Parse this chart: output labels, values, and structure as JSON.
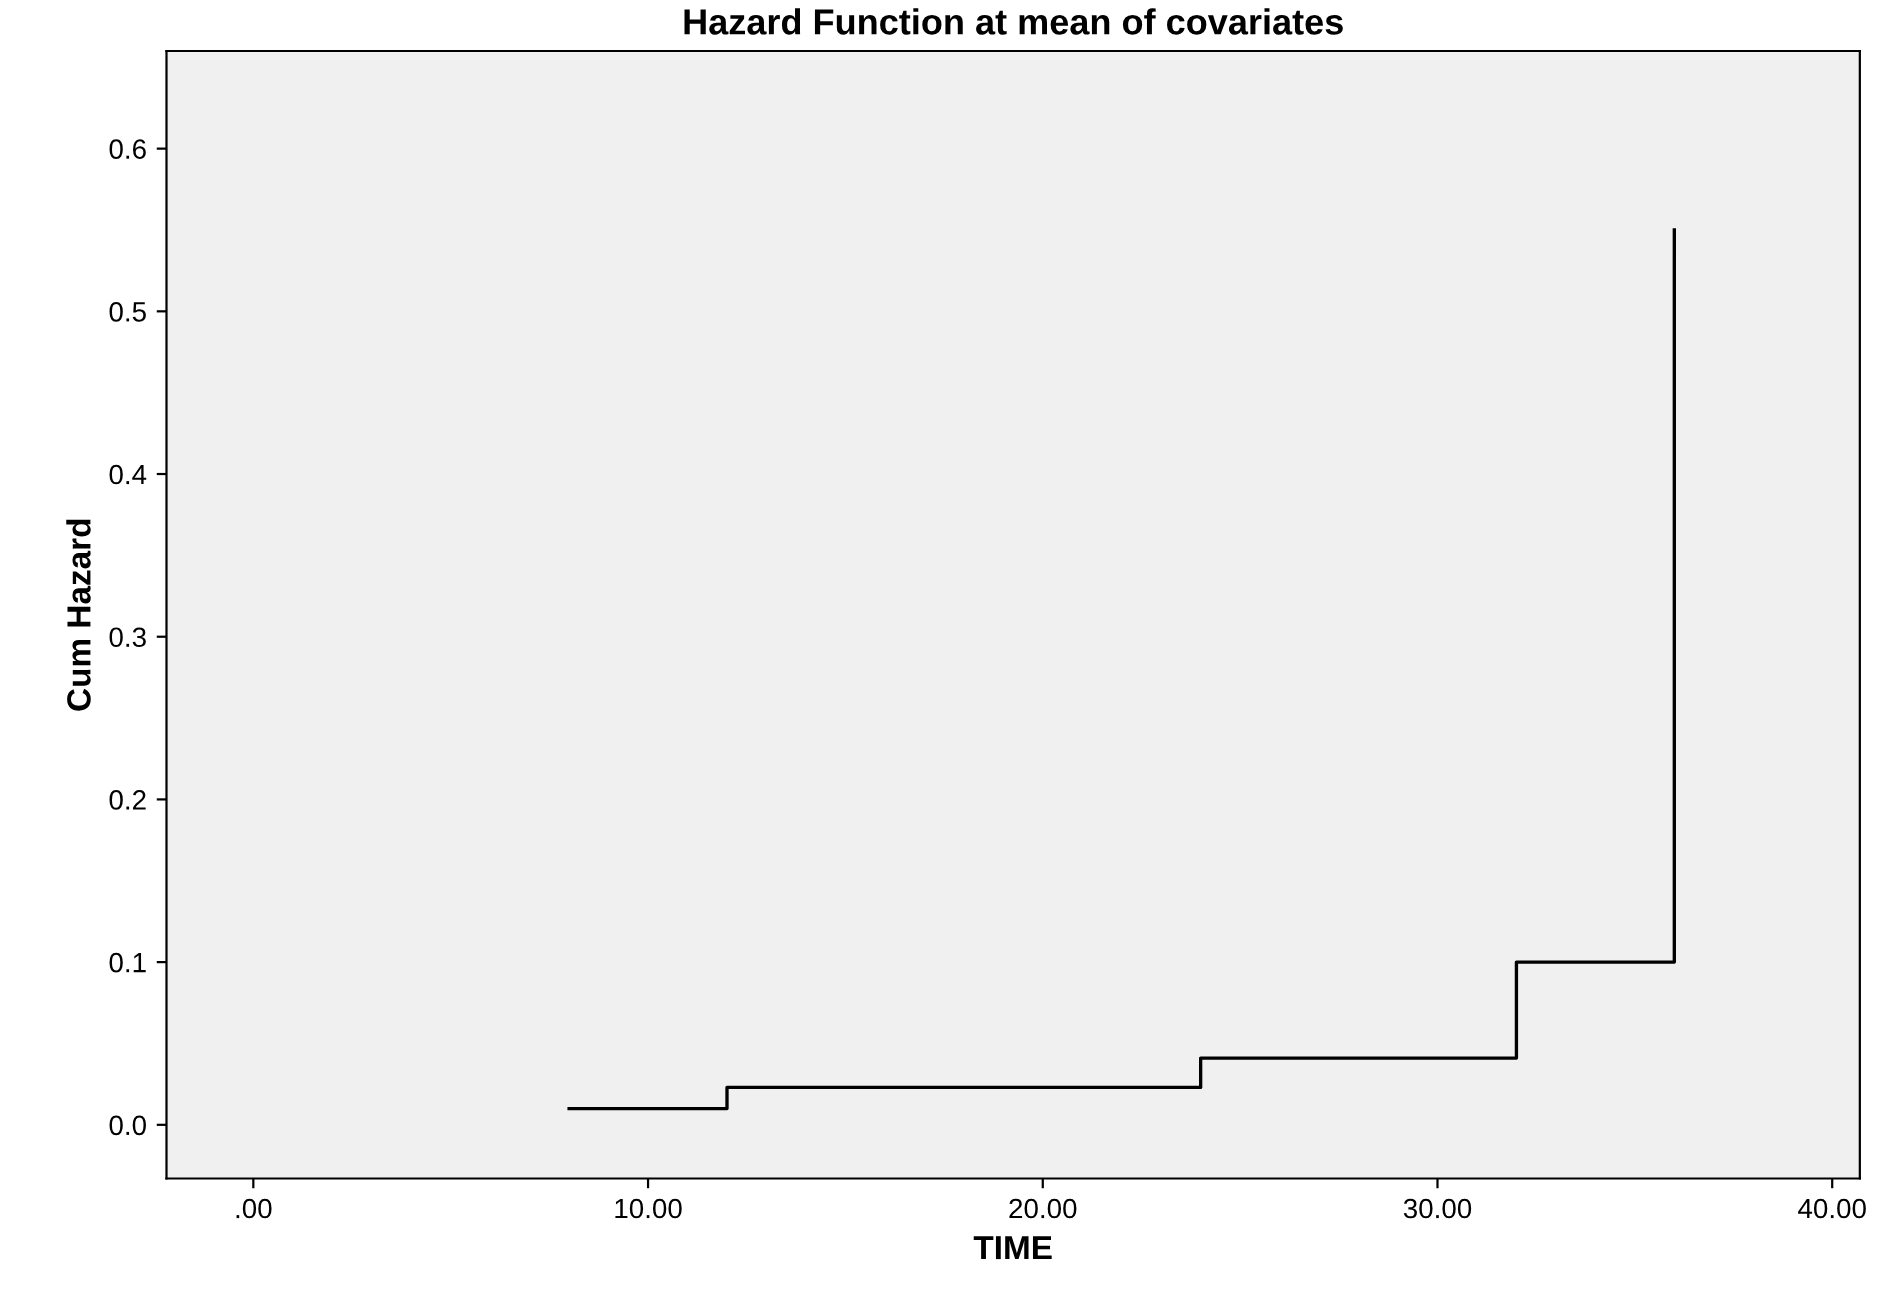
{
  "chart_data": {
    "type": "step",
    "title": "Hazard Function at mean of covariates",
    "xlabel": "TIME",
    "ylabel": "Cum Hazard",
    "x": [
      8,
      12,
      24,
      32,
      36
    ],
    "series": [
      {
        "color": "#000000",
        "values": [
          0.01,
          0.023,
          0.041,
          0.1,
          0.55
        ]
      }
    ],
    "xlim": [
      -2.2,
      40.7
    ],
    "ylim": [
      -0.033,
      0.66
    ],
    "xticks": [
      {
        "value": 0,
        "label": ".00"
      },
      {
        "value": 10,
        "label": "10.00"
      },
      {
        "value": 20,
        "label": "20.00"
      },
      {
        "value": 30,
        "label": "30.00"
      },
      {
        "value": 40,
        "label": "40.00"
      }
    ],
    "yticks": [
      {
        "value": 0,
        "label": "0.0"
      },
      {
        "value": 0.1,
        "label": "0.1"
      },
      {
        "value": 0.2,
        "label": "0.2"
      },
      {
        "value": 0.3,
        "label": "0.3"
      },
      {
        "value": 0.4,
        "label": "0.4"
      },
      {
        "value": 0.5,
        "label": "0.5"
      },
      {
        "value": 0.6,
        "label": "0.6"
      }
    ],
    "grid": false,
    "legend": false
  }
}
